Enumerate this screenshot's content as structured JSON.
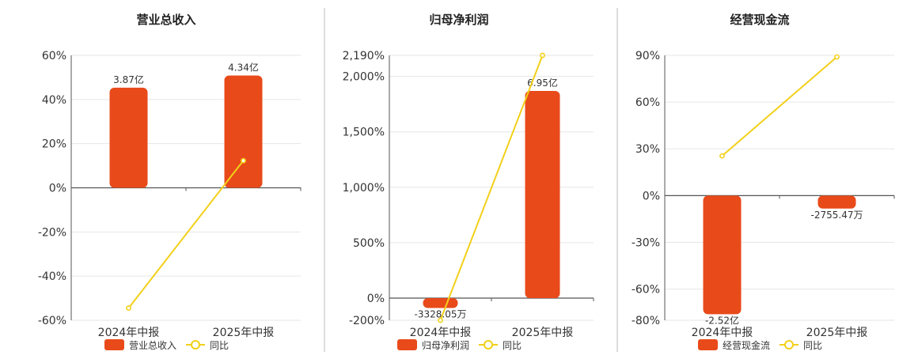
{
  "colors": {
    "bar": "#E84A1A",
    "line": "#F2D01A",
    "axis": "#555555",
    "grid": "#e6e6e6",
    "divider": "#bbbbbb"
  },
  "chart_data": [
    {
      "type": "bar",
      "title": "营业总收入",
      "categories": [
        "2024年中报",
        "2025年中报"
      ],
      "series": [
        {
          "name": "营业总收入",
          "type": "bar",
          "values": [
            3.87,
            4.34
          ],
          "labels": [
            "3.87亿",
            "4.34亿"
          ]
        },
        {
          "name": "同比",
          "type": "line",
          "values": [
            -54.5,
            12.3
          ]
        }
      ],
      "y_ticks": [
        "60%",
        "40%",
        "20%",
        "0%",
        "-20%",
        "-40%",
        "-60%"
      ],
      "y_tick_values": [
        60,
        40,
        20,
        0,
        -20,
        -40,
        -60
      ],
      "ylim": [
        -60,
        60
      ],
      "legend": [
        "营业总收入",
        "同比"
      ],
      "legend_position": "bottom"
    },
    {
      "type": "bar",
      "title": "归母净利润",
      "categories": [
        "2024年中报",
        "2025年中报"
      ],
      "series": [
        {
          "name": "归母净利润",
          "type": "bar",
          "values": [
            -0.3328,
            6.95
          ],
          "labels": [
            "-3328.05万",
            "6.95亿"
          ]
        },
        {
          "name": "同比",
          "type": "line",
          "values": [
            -200,
            2190
          ]
        }
      ],
      "y_ticks": [
        "2,190%",
        "2,000%",
        "1,500%",
        "1,000%",
        "500%",
        "0%",
        "-200%"
      ],
      "y_tick_values": [
        2190,
        2000,
        1500,
        1000,
        500,
        0,
        -200
      ],
      "ylim": [
        -200,
        2190
      ],
      "legend": [
        "归母净利润",
        "同比"
      ],
      "legend_position": "bottom"
    },
    {
      "type": "bar",
      "title": "经营现金流",
      "categories": [
        "2024年中报",
        "2025年中报"
      ],
      "series": [
        {
          "name": "经营现金流",
          "type": "bar",
          "values": [
            -2.52,
            -0.2755
          ],
          "labels": [
            "-2.52亿",
            "-2755.47万"
          ]
        },
        {
          "name": "同比",
          "type": "line",
          "values": [
            25.5,
            89
          ]
        }
      ],
      "y_ticks": [
        "90%",
        "60%",
        "30%",
        "0%",
        "-30%",
        "-60%",
        "-80%"
      ],
      "y_tick_values": [
        90,
        60,
        30,
        0,
        -30,
        -60,
        -80
      ],
      "ylim": [
        -80,
        90
      ],
      "legend": [
        "经营现金流",
        "同比"
      ],
      "legend_position": "bottom"
    }
  ]
}
